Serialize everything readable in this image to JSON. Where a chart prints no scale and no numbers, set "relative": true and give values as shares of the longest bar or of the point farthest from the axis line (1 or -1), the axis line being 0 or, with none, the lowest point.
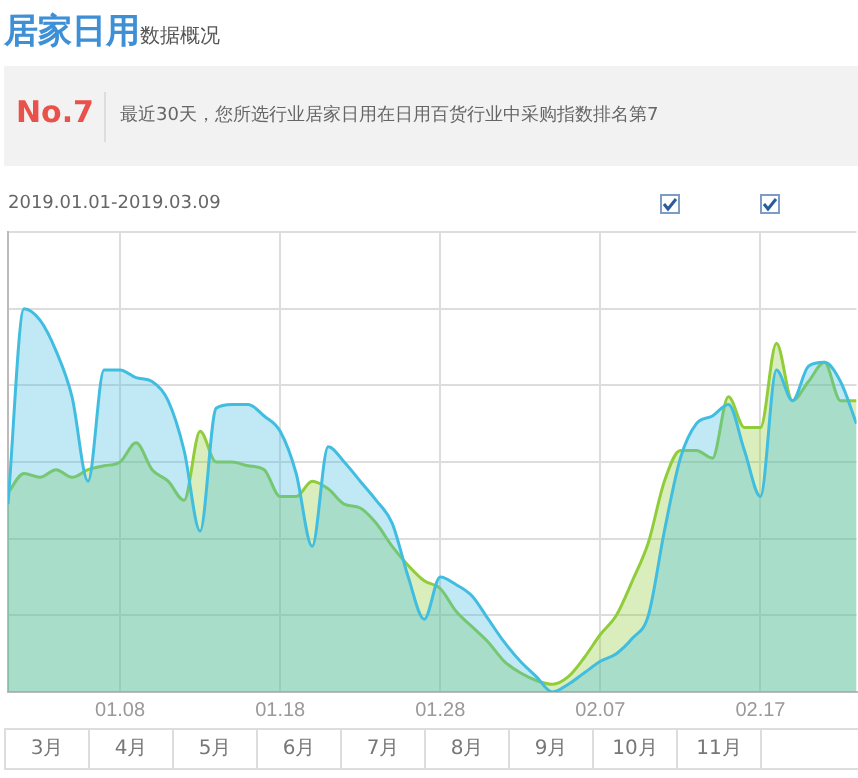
{
  "chart_data": {
    "type": "area",
    "title": "居家日用",
    "subtitle": "数据概况",
    "annotations": [
      "No.7",
      "最近30天，您所选行业居家日用在日用百货行业中采购指数排名第7",
      "2019.01.01-2019.03.09",
      "3月",
      "4月",
      "5月",
      "6月",
      "7月",
      "8月",
      "9月",
      "10月",
      "11月"
    ],
    "relative": true,
    "grid": true,
    "legend": false,
    "marker": "none",
    "xlim": [
      "2019-01-01",
      "2019-02-23"
    ],
    "xticks": [
      {
        "value": "2019-01-08",
        "label": "01.08"
      },
      {
        "value": "2019-01-18",
        "label": "01.18"
      },
      {
        "value": "2019-01-28",
        "label": "01.28"
      },
      {
        "value": "2019-02-07",
        "label": "02.07"
      },
      {
        "value": "2019-02-17",
        "label": "02.17"
      }
    ],
    "x": [
      "2019-01-01",
      "2019-01-02",
      "2019-01-03",
      "2019-01-04",
      "2019-01-05",
      "2019-01-06",
      "2019-01-07",
      "2019-01-08",
      "2019-01-09",
      "2019-01-10",
      "2019-01-11",
      "2019-01-12",
      "2019-01-13",
      "2019-01-14",
      "2019-01-15",
      "2019-01-16",
      "2019-01-17",
      "2019-01-18",
      "2019-01-19",
      "2019-01-20",
      "2019-01-21",
      "2019-01-22",
      "2019-01-23",
      "2019-01-24",
      "2019-01-25",
      "2019-01-26",
      "2019-01-27",
      "2019-01-28",
      "2019-01-29",
      "2019-01-30",
      "2019-01-31",
      "2019-02-01",
      "2019-02-02",
      "2019-02-03",
      "2019-02-04",
      "2019-02-05",
      "2019-02-06",
      "2019-02-07",
      "2019-02-08",
      "2019-02-09",
      "2019-02-10",
      "2019-02-11",
      "2019-02-12",
      "2019-02-13",
      "2019-02-14",
      "2019-02-15",
      "2019-02-16",
      "2019-02-17",
      "2019-02-18",
      "2019-02-19",
      "2019-02-20",
      "2019-02-21",
      "2019-02-22",
      "2019-02-23"
    ],
    "series": [
      {
        "color": "#41bde0",
        "values": [
          0.49,
          1.0,
          0.97,
          0.89,
          0.77,
          0.55,
          0.84,
          0.84,
          0.82,
          0.81,
          0.76,
          0.63,
          0.42,
          0.74,
          0.75,
          0.75,
          0.72,
          0.68,
          0.57,
          0.38,
          0.64,
          0.6,
          0.55,
          0.5,
          0.44,
          0.3,
          0.19,
          0.3,
          0.28,
          0.25,
          0.19,
          0.13,
          0.08,
          0.04,
          0.0,
          0.02,
          0.05,
          0.08,
          0.1,
          0.14,
          0.2,
          0.42,
          0.61,
          0.7,
          0.72,
          0.75,
          0.63,
          0.51,
          0.84,
          0.76,
          0.85,
          0.86,
          0.81,
          0.7
        ]
      },
      {
        "color": "#91cc3a",
        "values": [
          0.52,
          0.57,
          0.56,
          0.58,
          0.56,
          0.58,
          0.59,
          0.6,
          0.65,
          0.58,
          0.55,
          0.5,
          0.68,
          0.6,
          0.6,
          0.59,
          0.58,
          0.51,
          0.51,
          0.55,
          0.53,
          0.49,
          0.48,
          0.44,
          0.38,
          0.33,
          0.29,
          0.27,
          0.21,
          0.17,
          0.13,
          0.08,
          0.05,
          0.03,
          0.02,
          0.04,
          0.09,
          0.15,
          0.2,
          0.29,
          0.39,
          0.55,
          0.63,
          0.63,
          0.61,
          0.77,
          0.69,
          0.69,
          0.91,
          0.76,
          0.81,
          0.86,
          0.76,
          0.76
        ]
      }
    ]
  }
}
